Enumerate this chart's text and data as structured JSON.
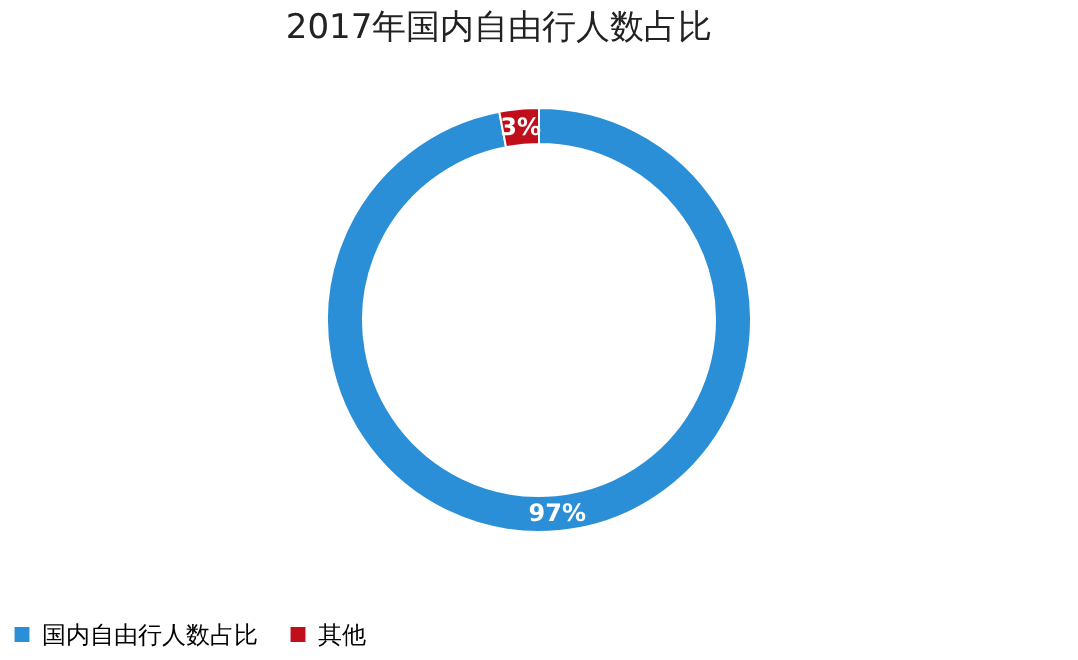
{
  "chart_data": {
    "type": "donut",
    "title": "2017年国内自由行人数占比",
    "categories": [
      "国内自由行人数占比",
      "其他"
    ],
    "values": [
      97,
      3
    ],
    "colors": [
      "#2a8fd6",
      "#c00f1a"
    ],
    "value_labels": [
      "97%",
      "3%"
    ],
    "legend": "bottom"
  }
}
